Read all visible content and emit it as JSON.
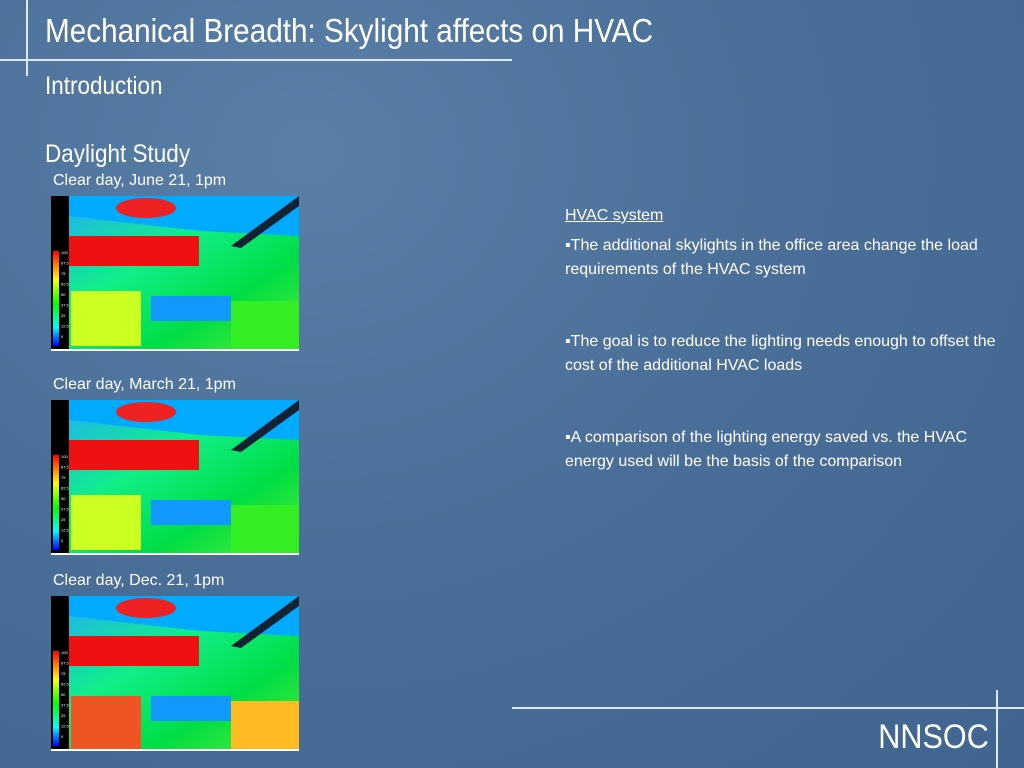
{
  "header": {
    "title": "Mechanical Breadth:  Skylight affects on HVAC",
    "subtitle": "Introduction",
    "section": "Daylight Study"
  },
  "renderings": [
    {
      "caption": "Clear day, June 21, 1pm"
    },
    {
      "caption": "Clear day, March 21, 1pm"
    },
    {
      "caption": "Clear day, Dec. 21, 1pm"
    }
  ],
  "scale_labels": [
    "100",
    "87.5",
    "75",
    "62.5",
    "50",
    "37.5",
    "25",
    "12.5",
    "0"
  ],
  "hvac": {
    "heading": "HVAC system",
    "bullets": [
      "The additional skylights in the office area change the load requirements of the HVAC system",
      "The goal is to reduce the lighting needs enough to offset the cost of the additional HVAC loads",
      "A comparison of the lighting energy saved vs. the HVAC energy used will be the basis of the comparison"
    ]
  },
  "footer": {
    "label": "NNSOC"
  }
}
